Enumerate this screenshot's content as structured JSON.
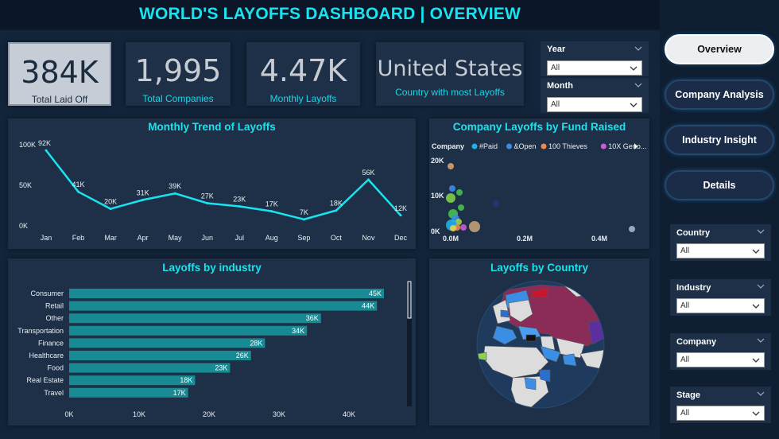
{
  "title": "WORLD'S LAYOFFS DASHBOARD | OVERVIEW",
  "kpis": [
    {
      "value": "384K",
      "label": "Total Laid Off"
    },
    {
      "value": "1,995",
      "label": "Total Companies"
    },
    {
      "value": "4.47K",
      "label": "Monthly Layoffs"
    },
    {
      "value": "United States",
      "label": "Country with most Layoffs"
    }
  ],
  "filters_top": [
    {
      "title": "Year",
      "value": "All"
    },
    {
      "title": "Month",
      "value": "All"
    }
  ],
  "nav": [
    {
      "label": "Overview",
      "active": true
    },
    {
      "label": "Company Analysis",
      "active": false
    },
    {
      "label": "Industry Insight",
      "active": false
    },
    {
      "label": "Details",
      "active": false
    }
  ],
  "filters_side": [
    {
      "title": "Country",
      "value": "All"
    },
    {
      "title": "Industry",
      "value": "All"
    },
    {
      "title": "Company",
      "value": "All"
    },
    {
      "title": "Stage",
      "value": "All"
    }
  ],
  "monthly_trend": {
    "title": "Monthly Trend of Layoffs",
    "chart_data": {
      "type": "line",
      "categories": [
        "Jan",
        "Feb",
        "Mar",
        "Apr",
        "May",
        "Jun",
        "Jul",
        "Aug",
        "Sep",
        "Oct",
        "Nov",
        "Dec"
      ],
      "values": [
        92,
        41,
        20,
        31,
        39,
        27,
        23,
        17,
        7,
        18,
        56,
        12
      ],
      "data_labels": [
        "92K",
        "41K",
        "20K",
        "31K",
        "39K",
        "27K",
        "23K",
        "17K",
        "7K",
        "18K",
        "56K",
        "12K"
      ],
      "y_ticks": [
        "0K",
        "50K",
        "100K"
      ],
      "ylim": [
        0,
        100
      ],
      "color": "#19e3ee"
    }
  },
  "fund_raised": {
    "title": "Company Layoffs by Fund Raised",
    "legend_title": "Company",
    "legend": [
      {
        "name": "#Paid",
        "color": "#1fb2e8"
      },
      {
        "name": "&Open",
        "color": "#3b8ee6"
      },
      {
        "name": "100 Thieves",
        "color": "#f0894a"
      },
      {
        "name": "10X Geno...",
        "color": "#c85bd6"
      }
    ],
    "y_ticks": [
      "0K",
      "10K",
      "20K"
    ],
    "x_ticks": [
      "0.0M",
      "0.2M",
      "0.4M"
    ]
  },
  "industry": {
    "title": "Layoffs by industry",
    "chart_data": {
      "type": "bar",
      "categories": [
        "Consumer",
        "Retail",
        "Other",
        "Transportation",
        "Finance",
        "Healthcare",
        "Food",
        "Real Estate",
        "Travel"
      ],
      "values": [
        45,
        44,
        36,
        34,
        28,
        26,
        23,
        18,
        17
      ],
      "data_labels": [
        "45K",
        "44K",
        "36K",
        "34K",
        "28K",
        "26K",
        "23K",
        "18K",
        "17K"
      ],
      "x_ticks": [
        "0K",
        "10K",
        "20K",
        "30K",
        "40K"
      ],
      "xlim": [
        0,
        50
      ],
      "color": "#188a94"
    }
  },
  "country": {
    "title": "Layoffs by Country"
  }
}
